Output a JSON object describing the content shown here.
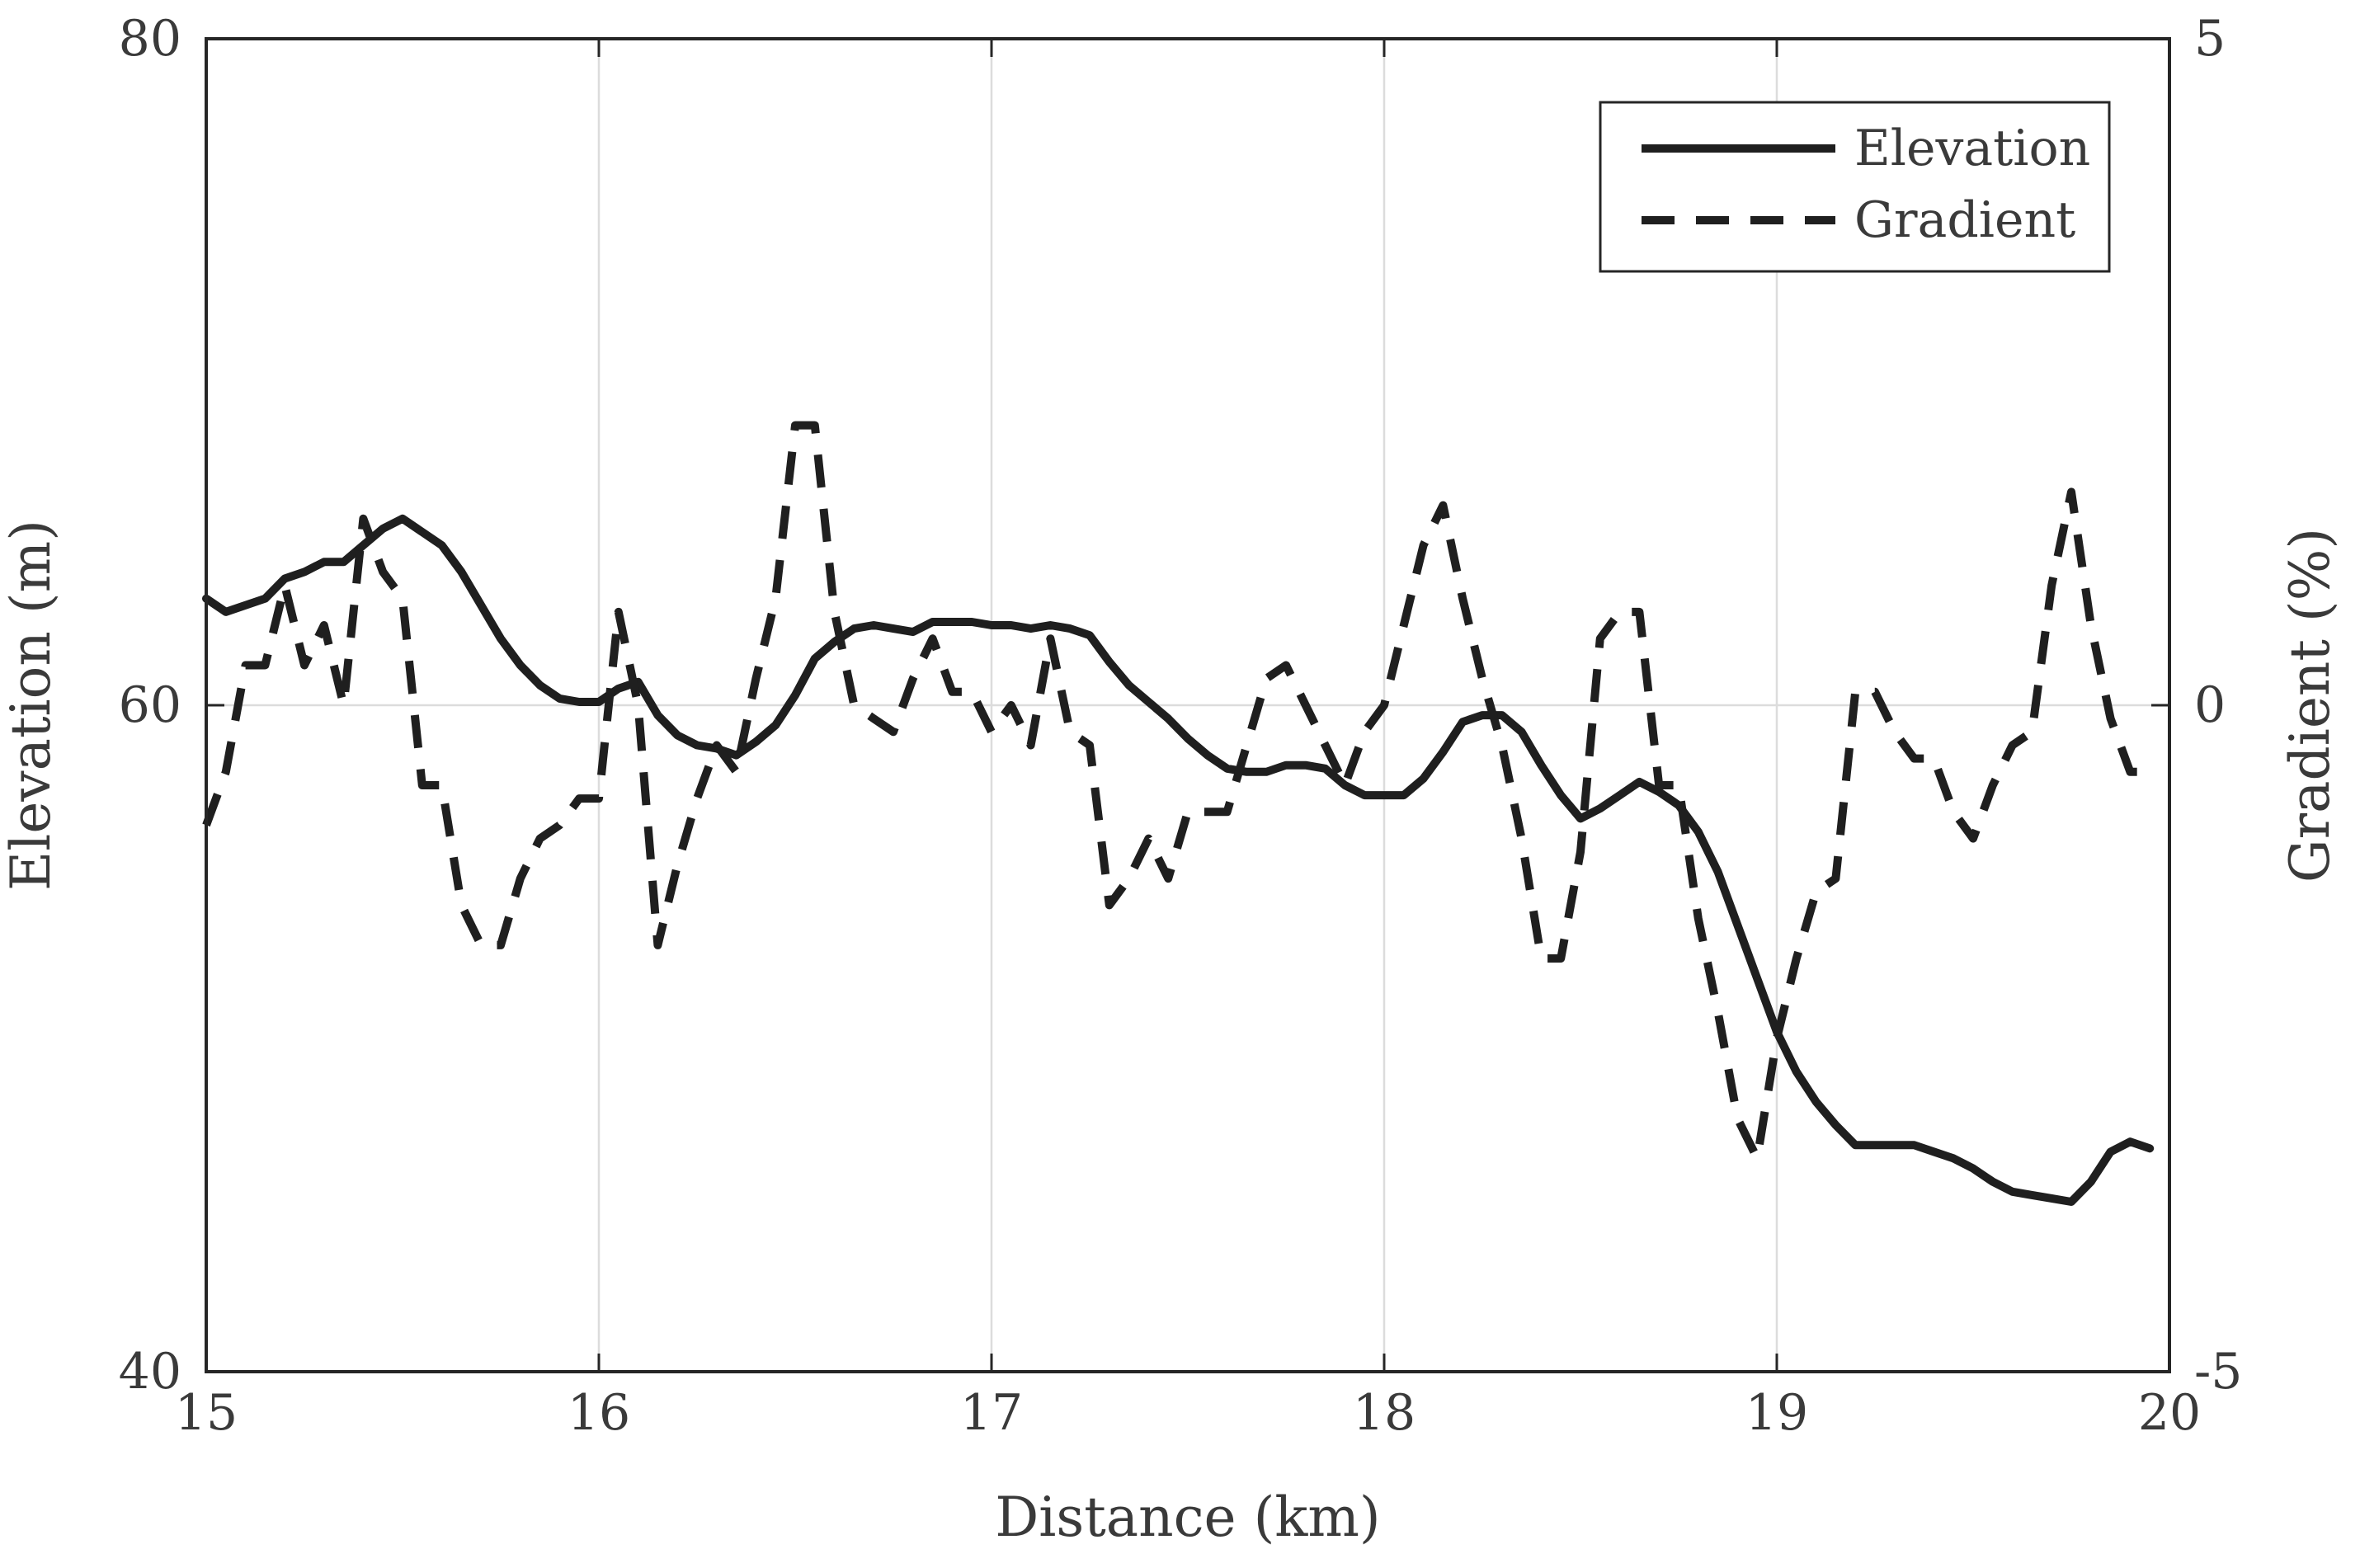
{
  "chart_data": {
    "type": "line",
    "title": "",
    "xlabel": "Distance (km)",
    "ylabel_left": "Elevation (m)",
    "ylabel_right": "Gradient (%)",
    "xlim": [
      15,
      20
    ],
    "ylim_left": [
      40,
      80
    ],
    "ylim_right": [
      -5,
      5
    ],
    "x_ticks": [
      15,
      16,
      17,
      18,
      19,
      20
    ],
    "y_ticks_left": [
      40,
      60,
      80
    ],
    "y_ticks_right": [
      -5,
      0,
      5
    ],
    "grid": true,
    "legend_position": "top-right",
    "series": [
      {
        "name": "Elevation",
        "axis": "left",
        "style": "solid",
        "color": "#1f1f1f",
        "x": [
          15.0,
          15.05,
          15.15,
          15.2,
          15.25,
          15.3,
          15.35,
          15.4,
          15.45,
          15.5,
          15.6,
          15.65,
          15.7,
          15.75,
          15.8,
          15.85,
          15.9,
          15.95,
          16.0,
          16.05,
          16.1,
          16.15,
          16.2,
          16.25,
          16.3,
          16.35,
          16.4,
          16.45,
          16.5,
          16.55,
          16.6,
          16.65,
          16.7,
          16.75,
          16.8,
          16.85,
          16.9,
          16.95,
          17.0,
          17.05,
          17.1,
          17.15,
          17.2,
          17.25,
          17.3,
          17.35,
          17.4,
          17.45,
          17.5,
          17.55,
          17.6,
          17.65,
          17.7,
          17.75,
          17.8,
          17.85,
          17.9,
          17.95,
          18.0,
          18.05,
          18.1,
          18.15,
          18.2,
          18.25,
          18.3,
          18.35,
          18.4,
          18.45,
          18.5,
          18.55,
          18.6,
          18.65,
          18.7,
          18.75,
          18.8,
          18.85,
          18.9,
          18.95,
          19.0,
          19.05,
          19.1,
          19.15,
          19.2,
          19.25,
          19.3,
          19.35,
          19.4,
          19.45,
          19.5,
          19.55,
          19.6,
          19.65,
          19.7,
          19.75,
          19.8,
          19.85,
          19.9,
          19.95
        ],
        "y": [
          63.2,
          62.8,
          63.2,
          63.8,
          64.0,
          64.3,
          64.3,
          64.8,
          65.3,
          65.6,
          64.8,
          64.0,
          63.0,
          62.0,
          61.2,
          60.6,
          60.2,
          60.1,
          60.1,
          60.5,
          60.7,
          59.7,
          59.1,
          58.8,
          58.7,
          58.5,
          58.9,
          59.4,
          60.3,
          61.4,
          61.9,
          62.3,
          62.4,
          62.3,
          62.2,
          62.5,
          62.5,
          62.5,
          62.4,
          62.4,
          62.3,
          62.4,
          62.3,
          62.1,
          61.3,
          60.6,
          60.1,
          59.6,
          59.0,
          58.5,
          58.1,
          58.0,
          58.0,
          58.2,
          58.2,
          58.1,
          57.6,
          57.3,
          57.3,
          57.3,
          57.8,
          58.6,
          59.5,
          59.7,
          59.7,
          59.2,
          58.2,
          57.3,
          56.6,
          56.9,
          57.3,
          57.7,
          57.4,
          57.0,
          56.2,
          55.0,
          53.4,
          51.8,
          50.2,
          49.0,
          48.1,
          47.4,
          46.8,
          46.8,
          46.8,
          46.8,
          46.6,
          46.4,
          46.1,
          45.7,
          45.4,
          45.3,
          45.2,
          45.1,
          45.7,
          46.6,
          46.9,
          46.7
        ]
      },
      {
        "name": "Gradient",
        "axis": "right",
        "style": "dashed",
        "color": "#1f1f1f",
        "x": [
          15.0,
          15.05,
          15.1,
          15.15,
          15.2,
          15.25,
          15.3,
          15.35,
          15.4,
          15.45,
          15.5,
          15.55,
          15.6,
          15.65,
          15.7,
          15.75,
          15.8,
          15.85,
          15.9,
          15.95,
          16.0,
          16.05,
          16.1,
          16.15,
          16.2,
          16.25,
          16.3,
          16.35,
          16.4,
          16.45,
          16.5,
          16.55,
          16.6,
          16.65,
          16.7,
          16.75,
          16.8,
          16.85,
          16.9,
          16.95,
          17.0,
          17.05,
          17.1,
          17.15,
          17.2,
          17.25,
          17.3,
          17.35,
          17.4,
          17.45,
          17.5,
          17.55,
          17.6,
          17.65,
          17.7,
          17.75,
          17.8,
          17.85,
          17.9,
          17.95,
          18.0,
          18.05,
          18.1,
          18.15,
          18.2,
          18.25,
          18.3,
          18.35,
          18.4,
          18.45,
          18.5,
          18.55,
          18.6,
          18.65,
          18.7,
          18.75,
          18.8,
          18.85,
          18.9,
          18.95,
          19.0,
          19.05,
          19.1,
          19.15,
          19.2,
          19.25,
          19.3,
          19.35,
          19.4,
          19.45,
          19.5,
          19.55,
          19.6,
          19.65,
          19.7,
          19.75,
          19.8,
          19.85,
          19.9,
          19.95
        ],
        "y": [
          -0.9,
          -0.5,
          0.3,
          0.3,
          0.9,
          0.3,
          0.6,
          0.0,
          1.4,
          1.0,
          0.8,
          -0.6,
          -0.6,
          -1.5,
          -1.8,
          -1.8,
          -1.3,
          -1.0,
          -0.9,
          -0.7,
          -0.7,
          0.7,
          0.0,
          -1.8,
          -1.2,
          -0.7,
          -0.3,
          -0.5,
          0.2,
          0.8,
          2.1,
          2.1,
          0.7,
          0.0,
          -0.1,
          -0.2,
          0.2,
          0.5,
          0.1,
          0.1,
          -0.2,
          0.0,
          -0.3,
          0.5,
          -0.2,
          -0.3,
          -1.5,
          -1.3,
          -1.0,
          -1.3,
          -0.8,
          -0.8,
          -0.8,
          -0.3,
          0.2,
          0.3,
          0.0,
          -0.3,
          -0.6,
          -0.2,
          0.0,
          0.6,
          1.2,
          1.5,
          0.8,
          0.2,
          -0.3,
          -1.0,
          -1.9,
          -1.9,
          -1.1,
          0.5,
          0.7,
          0.7,
          -0.6,
          -0.6,
          -1.6,
          -2.3,
          -3.1,
          -3.4,
          -2.5,
          -1.9,
          -1.4,
          -1.3,
          0.1,
          0.1,
          -0.2,
          -0.4,
          -0.4,
          -0.8,
          -1.0,
          -0.6,
          -0.3,
          -0.2,
          0.9,
          1.6,
          0.6,
          -0.1,
          -0.5,
          -0.5
        ]
      }
    ]
  }
}
